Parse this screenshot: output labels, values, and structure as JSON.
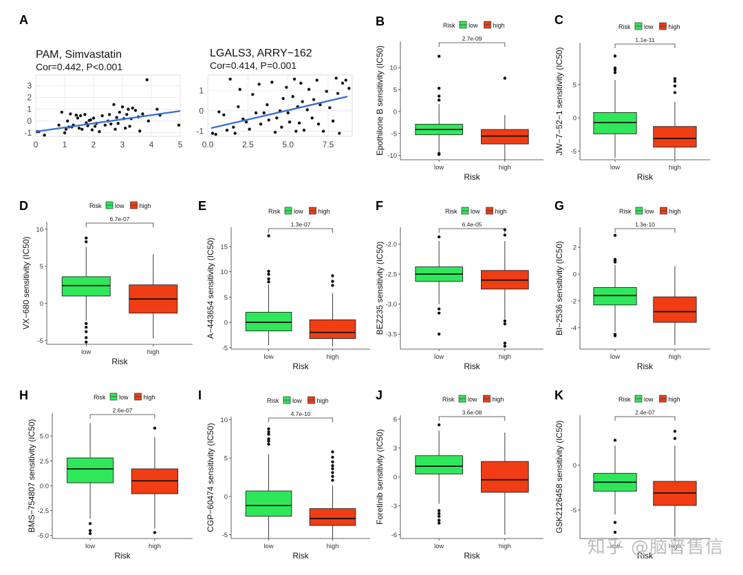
{
  "figure": {
    "watermark": "知乎 @脑普售信"
  },
  "chart_data": [
    {
      "panel": "A",
      "type": "scatter",
      "title": "PAM, Simvastatin",
      "subtitle": "Cor=0.442, P<0.001",
      "xlim": [
        0,
        5
      ],
      "ylim": [
        -1.3,
        3.9
      ],
      "xticks": [
        "0",
        "1",
        "2",
        "3",
        "4",
        "5"
      ],
      "yticks": [
        "-1",
        "0",
        "1",
        "2",
        "3"
      ],
      "xtick_values": [
        0,
        1,
        2,
        3,
        4,
        5
      ],
      "ytick_values": [
        -1,
        0,
        1,
        2,
        3
      ],
      "grid": true,
      "fit": {
        "x0": 0,
        "y0": -0.9,
        "x1": 5,
        "y1": 0.85
      },
      "points": [
        [
          0.05,
          -0.9
        ],
        [
          0.1,
          -0.9
        ],
        [
          0.3,
          -1.2
        ],
        [
          0.8,
          -0.35
        ],
        [
          0.9,
          0.75
        ],
        [
          1.0,
          -1.0
        ],
        [
          1.05,
          -0.7
        ],
        [
          1.1,
          0.0
        ],
        [
          1.15,
          -0.5
        ],
        [
          1.2,
          0.6
        ],
        [
          1.25,
          -0.5
        ],
        [
          1.3,
          -0.35
        ],
        [
          1.4,
          0.5
        ],
        [
          1.45,
          0.25
        ],
        [
          1.5,
          -0.6
        ],
        [
          1.55,
          0.45
        ],
        [
          1.6,
          -0.7
        ],
        [
          1.7,
          0.55
        ],
        [
          1.75,
          -0.15
        ],
        [
          1.8,
          -0.4
        ],
        [
          1.85,
          0.05
        ],
        [
          1.9,
          0.1
        ],
        [
          1.95,
          -0.75
        ],
        [
          2.0,
          0.25
        ],
        [
          2.05,
          -0.45
        ],
        [
          2.1,
          -0.2
        ],
        [
          2.2,
          -0.9
        ],
        [
          2.3,
          0.45
        ],
        [
          2.4,
          -0.35
        ],
        [
          2.5,
          0.0
        ],
        [
          2.55,
          0.55
        ],
        [
          2.6,
          -0.25
        ],
        [
          2.7,
          1.4
        ],
        [
          2.75,
          -0.7
        ],
        [
          2.8,
          0.3
        ],
        [
          2.85,
          -0.2
        ],
        [
          2.9,
          0.75
        ],
        [
          3.0,
          1.2
        ],
        [
          3.05,
          0.2
        ],
        [
          3.1,
          -0.6
        ],
        [
          3.15,
          0.55
        ],
        [
          3.2,
          1.0
        ],
        [
          3.25,
          -0.45
        ],
        [
          3.3,
          0.2
        ],
        [
          3.35,
          1.1
        ],
        [
          3.45,
          0.9
        ],
        [
          3.55,
          0.35
        ],
        [
          3.6,
          -0.85
        ],
        [
          3.7,
          0.6
        ],
        [
          3.85,
          3.5
        ],
        [
          3.9,
          0.0
        ],
        [
          4.2,
          1.0
        ],
        [
          4.3,
          0.5
        ],
        [
          4.95,
          -0.35
        ]
      ]
    },
    {
      "panel": "",
      "type": "scatter",
      "title": "LGALS3, ARRY−162",
      "subtitle": "Cor=0.414, P=0.001",
      "xlim": [
        0,
        9
      ],
      "ylim": [
        -1.25,
        1.75
      ],
      "xticks": [
        "0.0",
        "2.5",
        "5.0",
        "7.5"
      ],
      "yticks": [
        "-1",
        "0",
        "1"
      ],
      "xtick_values": [
        0,
        2.5,
        5,
        7.5
      ],
      "ytick_values": [
        -1,
        0,
        1
      ],
      "grid": true,
      "fit": {
        "x0": 0.2,
        "y0": -0.85,
        "x1": 8.7,
        "y1": 0.7
      },
      "points": [
        [
          0.3,
          -1.1
        ],
        [
          0.5,
          -1.15
        ],
        [
          0.7,
          -0.05
        ],
        [
          1.0,
          -0.2
        ],
        [
          1.2,
          -0.95
        ],
        [
          1.4,
          1.55
        ],
        [
          1.6,
          -0.8
        ],
        [
          1.7,
          -1.1
        ],
        [
          1.9,
          0.2
        ],
        [
          2.0,
          1.05
        ],
        [
          2.2,
          -0.4
        ],
        [
          2.4,
          -0.55
        ],
        [
          2.6,
          -0.9
        ],
        [
          2.8,
          0.8
        ],
        [
          3.0,
          -0.1
        ],
        [
          3.2,
          1.3
        ],
        [
          3.3,
          -0.65
        ],
        [
          3.5,
          -0.1
        ],
        [
          3.7,
          0.3
        ],
        [
          3.8,
          -0.45
        ],
        [
          4.0,
          1.4
        ],
        [
          4.2,
          -1.05
        ],
        [
          4.3,
          -0.35
        ],
        [
          4.5,
          0.0
        ],
        [
          4.6,
          -0.8
        ],
        [
          4.7,
          0.6
        ],
        [
          4.9,
          1.15
        ],
        [
          5.0,
          -0.1
        ],
        [
          5.1,
          -0.55
        ],
        [
          5.3,
          0.7
        ],
        [
          5.4,
          1.55
        ],
        [
          5.5,
          -1.0
        ],
        [
          5.6,
          0.2
        ],
        [
          5.7,
          -0.6
        ],
        [
          5.8,
          1.35
        ],
        [
          5.9,
          0.45
        ],
        [
          6.0,
          -0.95
        ],
        [
          6.2,
          0.05
        ],
        [
          6.3,
          1.05
        ],
        [
          6.5,
          -0.35
        ],
        [
          6.6,
          0.55
        ],
        [
          6.8,
          1.5
        ],
        [
          6.9,
          -0.65
        ],
        [
          7.0,
          0.3
        ],
        [
          7.2,
          -1.0
        ],
        [
          7.4,
          0.95
        ],
        [
          7.6,
          0.15
        ],
        [
          7.8,
          -0.5
        ],
        [
          8.0,
          1.6
        ],
        [
          8.1,
          0.85
        ],
        [
          8.2,
          -1.1
        ],
        [
          8.4,
          1.35
        ],
        [
          8.6,
          1.5
        ],
        [
          8.8,
          1.1
        ]
      ]
    },
    {
      "panel": "B",
      "type": "box",
      "ylabel": "Epothilone B sensitivity (IC50)",
      "xlabel": "Risk",
      "legend_title": "Risk",
      "legend": [
        "low",
        "high"
      ],
      "pvalue": "2.7e-09",
      "ylim": [
        -11,
        16
      ],
      "yticks": [
        "-10",
        "-5",
        "0",
        "5",
        "10"
      ],
      "ytick_values": [
        -10,
        -5,
        0,
        5,
        10
      ],
      "groups": [
        {
          "name": "low",
          "color": "#2ee85a",
          "whisker_low": -9.3,
          "q1": -5.3,
          "median": -4.1,
          "q3": -2.9,
          "whisker_high": 1.7,
          "outliers": [
            12.6,
            5.3,
            3.5,
            2.6,
            -9.6,
            -9.8
          ]
        },
        {
          "name": "high",
          "color": "#f03d14",
          "whisker_low": -11.0,
          "q1": -7.4,
          "median": -5.6,
          "q3": -4.1,
          "whisker_high": -0.8,
          "outliers": [
            7.6
          ]
        }
      ]
    },
    {
      "panel": "C",
      "type": "box",
      "ylabel": "JW−7−52−1 sensitivity (IC50)",
      "xlabel": "Risk",
      "legend_title": "Risk",
      "legend": [
        "low",
        "high"
      ],
      "pvalue": "1.1e-11",
      "ylim": [
        -6.3,
        11.3
      ],
      "yticks": [
        "-5",
        "0",
        "5"
      ],
      "ytick_values": [
        -5,
        0,
        5
      ],
      "groups": [
        {
          "name": "low",
          "color": "#2ee85a",
          "whisker_low": -6.0,
          "q1": -2.4,
          "median": -0.7,
          "q3": 0.8,
          "whisker_high": 5.7,
          "outliers": [
            9.3,
            7.5,
            7.2,
            6.8
          ]
        },
        {
          "name": "high",
          "color": "#f03d14",
          "whisker_low": -6.2,
          "q1": -4.4,
          "median": -3.1,
          "q3": -1.3,
          "whisker_high": 2.4,
          "outliers": [
            5.9,
            5.5,
            4.8,
            3.8
          ]
        }
      ]
    },
    {
      "panel": "D",
      "type": "box",
      "ylabel": "VX−680 sensitivity (IC50)",
      "xlabel": "Risk",
      "legend_title": "Risk",
      "legend": [
        "low",
        "high"
      ],
      "pvalue": "6.7e-07",
      "ylim": [
        -5.5,
        11
      ],
      "yticks": [
        "-5",
        "0",
        "5",
        "10"
      ],
      "ytick_values": [
        -5,
        0,
        5,
        10
      ],
      "groups": [
        {
          "name": "low",
          "color": "#2ee85a",
          "whisker_low": -2.3,
          "q1": 1.0,
          "median": 2.4,
          "q3": 3.6,
          "whisker_high": 7.6,
          "outliers": [
            8.8,
            8.3,
            -2.7,
            -3.2,
            -3.8,
            -4.6,
            -5.2
          ]
        },
        {
          "name": "high",
          "color": "#f03d14",
          "whisker_low": -4.7,
          "q1": -1.3,
          "median": 0.6,
          "q3": 2.5,
          "whisker_high": 6.6,
          "outliers": []
        }
      ]
    },
    {
      "panel": "E",
      "type": "box",
      "ylabel": "A−443654 sensitivity (IC50)",
      "xlabel": "Risk",
      "legend_title": "Risk",
      "legend": [
        "low",
        "high"
      ],
      "pvalue": "1.3e-07",
      "ylim": [
        -5.3,
        18.8
      ],
      "yticks": [
        "-5",
        "0",
        "5",
        "10",
        "15"
      ],
      "ytick_values": [
        -5,
        0,
        5,
        10,
        15
      ],
      "groups": [
        {
          "name": "low",
          "color": "#2ee85a",
          "whisker_low": -4.5,
          "q1": -1.7,
          "median": 0.0,
          "q3": 2.0,
          "whisker_high": 7.5,
          "outliers": [
            17.1,
            10.1,
            9.5,
            8.6,
            8.0
          ]
        },
        {
          "name": "high",
          "color": "#f03d14",
          "whisker_low": -4.7,
          "q1": -3.2,
          "median": -2.0,
          "q3": 0.5,
          "whisker_high": 5.8,
          "outliers": [
            9.2,
            8.1,
            7.3
          ]
        }
      ]
    },
    {
      "panel": "F",
      "type": "box",
      "ylabel": "BEZ235 sensitivity (IC50)",
      "xlabel": "Risk",
      "legend_title": "Risk",
      "legend": [
        "low",
        "high"
      ],
      "pvalue": "6.4e-05",
      "ylim": [
        -3.75,
        -1.72
      ],
      "yticks": [
        "-2.0",
        "-2.5",
        "-3.0",
        "-3.5"
      ],
      "ytick_values": [
        -2.0,
        -2.5,
        -3.0,
        -3.5
      ],
      "groups": [
        {
          "name": "low",
          "color": "#2ee85a",
          "whisker_low": -3.0,
          "q1": -2.62,
          "median": -2.5,
          "q3": -2.38,
          "whisker_high": -1.95,
          "outliers": [
            -1.88,
            -3.08,
            -3.15,
            -3.5
          ]
        },
        {
          "name": "high",
          "color": "#f03d14",
          "whisker_low": -3.25,
          "q1": -2.75,
          "median": -2.6,
          "q3": -2.44,
          "whisker_high": -1.95,
          "outliers": [
            -1.76,
            -1.85,
            -3.28,
            -3.33,
            -3.65,
            -3.7
          ]
        }
      ]
    },
    {
      "panel": "G",
      "type": "box",
      "ylabel": "BI−2536 sensitivity (IC50)",
      "xlabel": "Risk",
      "legend_title": "Risk",
      "legend": [
        "low",
        "high"
      ],
      "pvalue": "1.3e-10",
      "ylim": [
        -5.6,
        3.5
      ],
      "yticks": [
        "-4",
        "-2",
        "0",
        "2"
      ],
      "ytick_values": [
        -4,
        -2,
        0,
        2
      ],
      "groups": [
        {
          "name": "low",
          "color": "#2ee85a",
          "whisker_low": -4.3,
          "q1": -2.3,
          "median": -1.6,
          "q3": -1.0,
          "whisker_high": 0.7,
          "outliers": [
            2.9,
            1.1,
            1.0,
            0.9,
            -4.5,
            -4.6
          ]
        },
        {
          "name": "high",
          "color": "#f03d14",
          "whisker_low": -5.3,
          "q1": -3.6,
          "median": -2.8,
          "q3": -1.7,
          "whisker_high": 0.6,
          "outliers": []
        }
      ]
    },
    {
      "panel": "H",
      "type": "box",
      "ylabel": "BMS−754807 sensitivity (IC50)",
      "xlabel": "Risk",
      "legend_title": "Risk",
      "legend": [
        "low",
        "high"
      ],
      "pvalue": "2.6e-07",
      "ylim": [
        -5.3,
        7.3
      ],
      "yticks": [
        "5.0",
        "2.5",
        "0.0",
        "-2.5",
        "-5.0"
      ],
      "ytick_values": [
        5,
        2.5,
        0,
        -2.5,
        -5
      ],
      "groups": [
        {
          "name": "low",
          "color": "#2ee85a",
          "whisker_low": -3.3,
          "q1": 0.3,
          "median": 1.7,
          "q3": 2.8,
          "whisker_high": 6.3,
          "outliers": [
            -3.8,
            -4.5,
            -4.8
          ]
        },
        {
          "name": "high",
          "color": "#f03d14",
          "whisker_low": -4.3,
          "q1": -0.8,
          "median": 0.5,
          "q3": 1.7,
          "whisker_high": 4.9,
          "outliers": [
            5.8,
            -4.7
          ]
        }
      ]
    },
    {
      "panel": "I",
      "type": "box",
      "ylabel": "CGP−60474 sensitivity (IC50)",
      "xlabel": "Risk",
      "legend_title": "Risk",
      "legend": [
        "low",
        "high"
      ],
      "pvalue": "4.7e-10",
      "ylim": [
        -5.5,
        10.4
      ],
      "yticks": [
        "-5",
        "0",
        "5",
        "10"
      ],
      "ytick_values": [
        -5,
        0,
        5,
        10
      ],
      "groups": [
        {
          "name": "low",
          "color": "#2ee85a",
          "whisker_low": -5.5,
          "q1": -2.6,
          "median": -1.2,
          "q3": 0.7,
          "whisker_high": 5.5,
          "outliers": [
            8.8,
            8.4,
            8.1,
            7.5,
            7.2,
            6.8
          ]
        },
        {
          "name": "high",
          "color": "#f03d14",
          "whisker_low": -5.5,
          "q1": -3.8,
          "median": -2.9,
          "q3": -1.6,
          "whisker_high": 1.4,
          "outliers": [
            5.8,
            5.1,
            4.5,
            4.0,
            3.6,
            3.1,
            2.6,
            2.1
          ]
        }
      ]
    },
    {
      "panel": "J",
      "type": "box",
      "ylabel": "Foretinib sensitivity (IC50)",
      "xlabel": "Risk",
      "legend_title": "Risk",
      "legend": [
        "low",
        "high"
      ],
      "pvalue": "3.6e-08",
      "ylim": [
        -6.4,
        6.4
      ],
      "yticks": [
        "6",
        "3",
        "0",
        "-3",
        "-6"
      ],
      "ytick_values": [
        6,
        3,
        0,
        -3,
        -6
      ],
      "groups": [
        {
          "name": "low",
          "color": "#2ee85a",
          "whisker_low": -2.8,
          "q1": 0.3,
          "median": 1.1,
          "q3": 2.2,
          "whisker_high": 4.8,
          "outliers": [
            5.4,
            -3.5,
            -3.8,
            -4.1,
            -4.5,
            -4.8
          ]
        },
        {
          "name": "high",
          "color": "#f03d14",
          "whisker_low": -6.0,
          "q1": -1.6,
          "median": -0.3,
          "q3": 1.6,
          "whisker_high": 4.6,
          "outliers": []
        }
      ]
    },
    {
      "panel": "K",
      "type": "box",
      "ylabel": "GSK2126458 sensitivity (IC50)",
      "xlabel": "Risk",
      "legend_title": "Risk",
      "legend": [
        "low",
        "high"
      ],
      "pvalue": "2.4e-07",
      "ylim": [
        -8.2,
        5.6
      ],
      "yticks": [
        "0",
        "-5"
      ],
      "ytick_values": [
        0,
        -5
      ],
      "groups": [
        {
          "name": "low",
          "color": "#2ee85a",
          "whisker_low": -5.5,
          "q1": -2.9,
          "median": -1.9,
          "q3": -0.9,
          "whisker_high": 2.2,
          "outliers": [
            2.8,
            -6.4,
            -7.5
          ]
        },
        {
          "name": "high",
          "color": "#f03d14",
          "whisker_low": -8.0,
          "q1": -4.5,
          "median": -3.1,
          "q3": -1.8,
          "whisker_high": 2.2,
          "outliers": [
            3.8,
            3.0
          ]
        }
      ]
    }
  ]
}
